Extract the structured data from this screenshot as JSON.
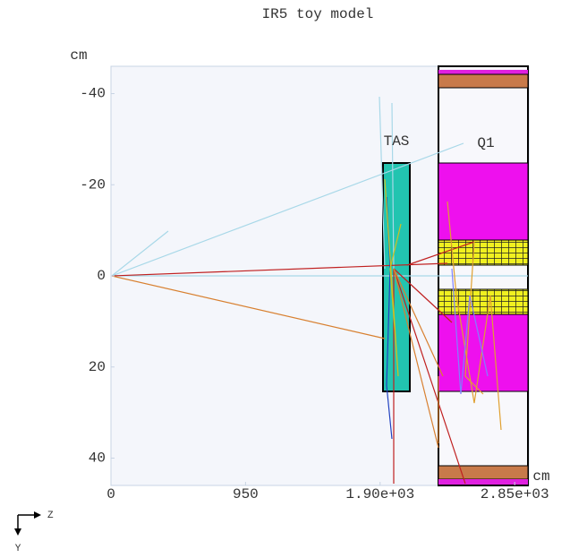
{
  "chart_data": {
    "type": "geometry",
    "title": "IR5 toy model",
    "y_label": "cm",
    "x_label": "cm",
    "xlim": [
      0,
      2950
    ],
    "ylim": [
      -46,
      46
    ],
    "xticks": [
      0,
      950,
      {
        "value": 1900,
        "label": "1.90e+03"
      },
      {
        "value": 2850,
        "label": "2.85e+03"
      }
    ],
    "yticks": [
      -40,
      -20,
      0,
      20,
      40
    ],
    "annotations": [
      "TAS",
      "Q1"
    ],
    "axis_indicator": [
      "Z",
      "Y"
    ],
    "grid": false
  }
}
